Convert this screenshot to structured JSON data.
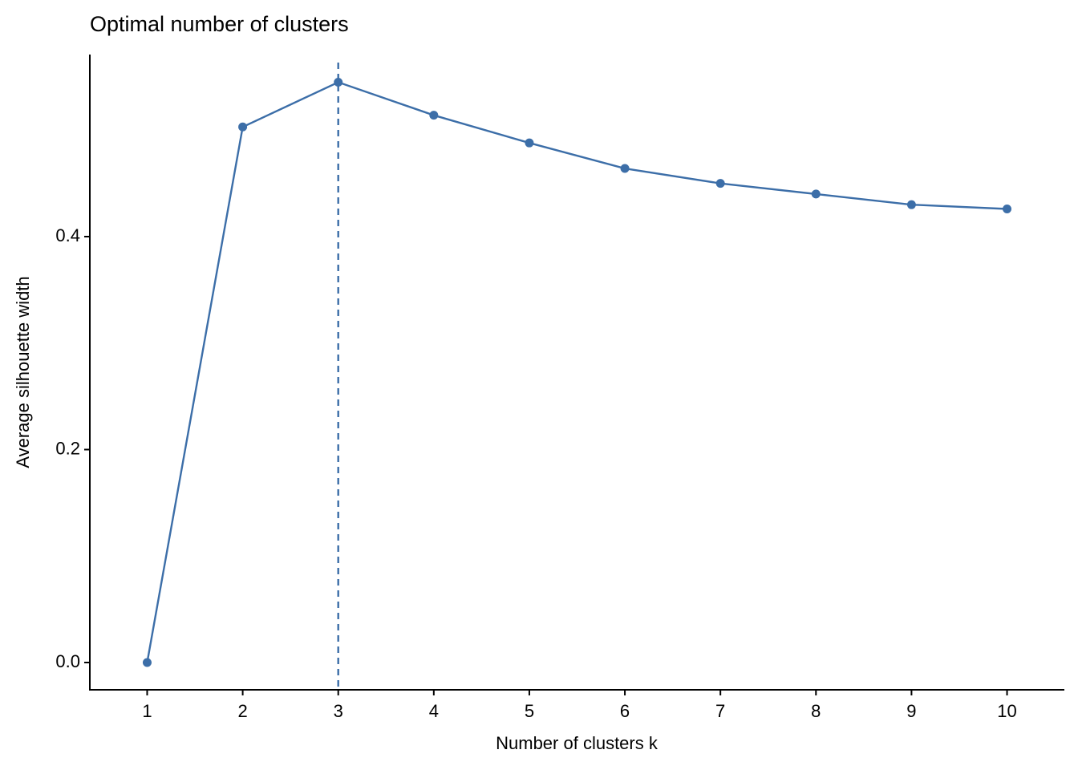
{
  "chart_data": {
    "type": "line",
    "title": "Optimal number of clusters",
    "x_label": "Number of clusters k",
    "y_label": "Average silhouette width",
    "x": [
      1,
      2,
      3,
      4,
      5,
      6,
      7,
      8,
      9,
      10
    ],
    "series": [
      {
        "color": "#3c6ea8",
        "values": [
          0,
          0.503,
          0.545,
          0.514,
          0.488,
          0.464,
          0.45,
          0.44,
          0.43,
          0.426
        ]
      }
    ],
    "vline_x": 3,
    "xlim": [
      0.4,
      10.6
    ],
    "xticks": [
      1,
      2,
      3,
      4,
      5,
      6,
      7,
      8,
      9,
      10
    ],
    "ylim": [
      -0.0256,
      0.571
    ],
    "yticks": [
      {
        "value": 0,
        "label": "0.0"
      },
      0.2,
      0.4
    ],
    "grid": false
  }
}
